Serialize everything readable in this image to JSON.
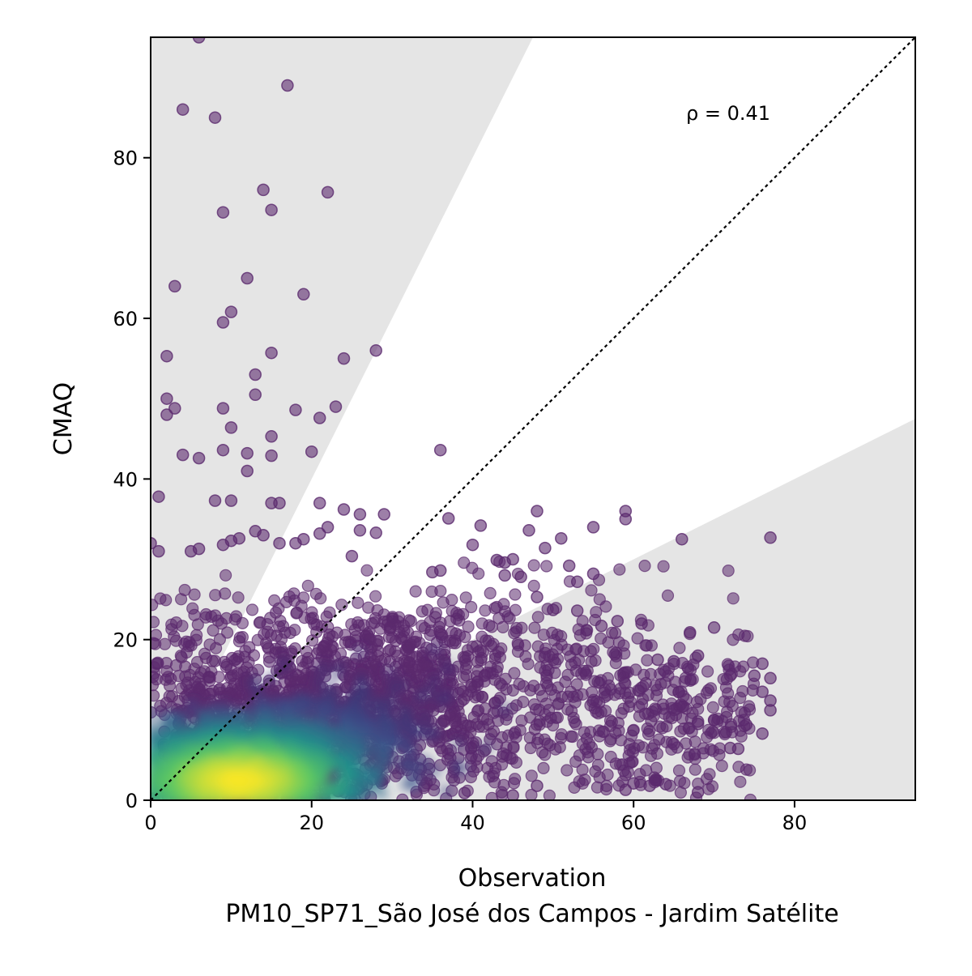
{
  "chart_data": {
    "type": "scatter",
    "title": "",
    "xlabel": "Observation",
    "xlabel_subtitle": "PM10_SP71_São José dos Campos - Jardim Satélite",
    "ylabel": "CMAQ",
    "xlim": [
      0,
      95
    ],
    "ylim": [
      0,
      95
    ],
    "xticks": [
      0,
      20,
      40,
      60,
      80
    ],
    "yticks": [
      0,
      20,
      40,
      60,
      80
    ],
    "grid": false,
    "legend": "none",
    "annotation": "ρ = 0.41",
    "reference_line": {
      "slope": 1,
      "style": "dotted",
      "color": "#000000"
    },
    "shaded_regions": [
      {
        "description": "upper factor-of-2 band",
        "lower_slope": 2.0,
        "color": "#e5e5e5"
      },
      {
        "description": "lower factor-of-2 band",
        "upper_slope": 0.5,
        "color": "#e5e5e5"
      }
    ],
    "colormap": "viridis",
    "marker_color_sparse": "#5b2a6e",
    "density_core": {
      "x_center": 11,
      "y_center": 2.5
    },
    "outlier_points": [
      [
        6,
        95
      ],
      [
        17,
        89
      ],
      [
        4,
        86
      ],
      [
        8,
        85
      ],
      [
        14,
        76
      ],
      [
        22,
        75.7
      ],
      [
        15,
        73.5
      ],
      [
        9,
        73.2
      ],
      [
        12,
        65
      ],
      [
        3,
        64
      ],
      [
        19,
        63
      ],
      [
        10,
        60.8
      ],
      [
        9,
        59.5
      ],
      [
        28,
        56
      ],
      [
        2,
        55.3
      ],
      [
        15,
        55.7
      ],
      [
        24,
        55
      ],
      [
        13,
        53
      ],
      [
        13,
        50.5
      ],
      [
        2,
        50
      ],
      [
        3,
        48.8
      ],
      [
        9,
        48.8
      ],
      [
        23,
        49
      ],
      [
        18,
        48.6
      ],
      [
        2,
        48
      ],
      [
        21,
        47.6
      ],
      [
        10,
        46.4
      ],
      [
        15,
        45.3
      ],
      [
        36,
        43.6
      ],
      [
        9,
        43.6
      ],
      [
        12,
        43.2
      ],
      [
        20,
        43.4
      ],
      [
        4,
        43
      ],
      [
        6,
        42.6
      ],
      [
        15,
        42.9
      ],
      [
        12,
        41
      ],
      [
        1,
        37.8
      ],
      [
        8,
        37.3
      ],
      [
        10,
        37.3
      ],
      [
        15,
        37
      ],
      [
        16,
        37
      ],
      [
        21,
        37
      ],
      [
        24,
        36.2
      ],
      [
        26,
        35.6
      ],
      [
        29,
        35.6
      ],
      [
        37,
        35.1
      ],
      [
        48,
        36
      ],
      [
        59,
        36
      ],
      [
        59,
        35
      ],
      [
        41,
        34.2
      ],
      [
        22,
        34
      ],
      [
        21,
        33.2
      ],
      [
        26,
        33.6
      ],
      [
        28,
        33.3
      ],
      [
        47,
        33.6
      ],
      [
        51,
        32.6
      ],
      [
        55,
        34
      ],
      [
        66,
        32.5
      ],
      [
        77,
        32.7
      ],
      [
        0,
        32
      ],
      [
        1,
        31
      ],
      [
        5,
        31
      ],
      [
        6,
        31.3
      ],
      [
        9,
        31.8
      ],
      [
        10,
        32.3
      ],
      [
        11,
        32.6
      ],
      [
        13,
        33.5
      ],
      [
        14,
        33
      ],
      [
        16,
        32
      ],
      [
        18,
        32
      ],
      [
        19,
        32.5
      ],
      [
        40,
        31.8
      ],
      [
        49,
        31.4
      ],
      [
        25,
        30.4
      ],
      [
        43,
        29.9
      ],
      [
        44,
        29.6
      ],
      [
        45,
        30
      ],
      [
        52,
        29.2
      ],
      [
        35,
        28.4
      ],
      [
        36,
        28.6
      ],
      [
        44,
        28
      ],
      [
        46,
        27.8
      ],
      [
        53,
        27.2
      ],
      [
        55,
        28.2
      ],
      [
        48,
        25.3
      ],
      [
        50,
        23.7
      ],
      [
        53,
        23.6
      ],
      [
        58,
        22.3
      ],
      [
        61,
        22
      ],
      [
        56,
        21.7
      ],
      [
        67,
        20.9
      ],
      [
        70,
        21.5
      ],
      [
        63,
        17.5
      ],
      [
        65,
        17.3
      ],
      [
        68,
        18
      ],
      [
        72,
        15.5
      ],
      [
        75,
        15.5
      ],
      [
        76,
        17
      ],
      [
        77,
        15.2
      ],
      [
        76,
        13.5
      ],
      [
        77,
        12.4
      ],
      [
        77,
        11.2
      ],
      [
        74,
        9.4
      ],
      [
        76,
        8.3
      ],
      [
        72,
        6.5
      ],
      [
        73,
        6.4
      ],
      [
        65,
        7
      ],
      [
        68,
        9.5
      ],
      [
        68,
        9.8
      ],
      [
        70,
        10
      ],
      [
        64,
        2
      ],
      [
        59,
        1.3
      ],
      [
        60,
        2.1
      ],
      [
        62,
        1.8
      ],
      [
        68,
        1
      ],
      [
        45,
        0.6
      ],
      [
        39,
        0.9
      ],
      [
        48,
        1.8
      ]
    ]
  }
}
